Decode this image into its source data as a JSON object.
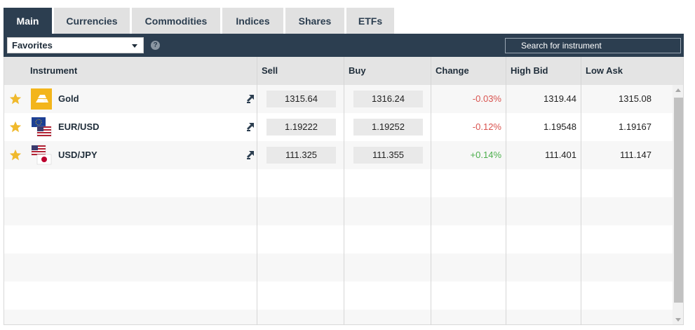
{
  "tabs": [
    {
      "label": "Main",
      "active": true
    },
    {
      "label": "Currencies",
      "active": false
    },
    {
      "label": "Commodities",
      "active": false
    },
    {
      "label": "Indices",
      "active": false
    },
    {
      "label": "Shares",
      "active": false
    },
    {
      "label": "ETFs",
      "active": false
    }
  ],
  "toolbar": {
    "list_selected": "Favorites",
    "help_label": "?",
    "search_placeholder": "Search for instrument"
  },
  "columns": {
    "instrument": "Instrument",
    "sell": "Sell",
    "buy": "Buy",
    "change": "Change",
    "high_bid": "High Bid",
    "low_ask": "Low Ask"
  },
  "rows": [
    {
      "icon": "gold-bars-icon",
      "name": "Gold",
      "sell": "1315.64",
      "buy": "1316.24",
      "change": "-0.03%",
      "high_bid": "1319.44",
      "low_ask": "1315.08"
    },
    {
      "icon": "eur-usd-flags-icon",
      "name": "EUR/USD",
      "sell": "1.19222",
      "buy": "1.19252",
      "change": "-0.12%",
      "high_bid": "1.19548",
      "low_ask": "1.19167"
    },
    {
      "icon": "usd-jpy-flags-icon",
      "name": "USD/JPY",
      "sell": "111.325",
      "buy": "111.355",
      "change": "+0.14%",
      "high_bid": "111.401",
      "low_ask": "111.147"
    }
  ],
  "colors": {
    "accent": "#2c3e50",
    "negative": "#d9534f",
    "positive": "#4cae4c",
    "star": "#f0b92c"
  }
}
